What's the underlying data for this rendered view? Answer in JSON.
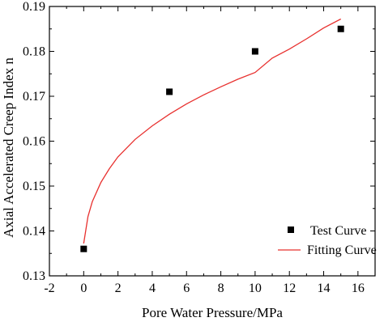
{
  "chart_data": {
    "type": "scatter",
    "xlabel": "Pore Water Pressure/MPa",
    "ylabel": "Axial Accelerated Creep Index n",
    "xlim": [
      -2,
      17
    ],
    "ylim": [
      0.13,
      0.19
    ],
    "x_ticks": [
      -2,
      0,
      2,
      4,
      6,
      8,
      10,
      12,
      14,
      16
    ],
    "y_ticks": [
      0.13,
      0.14,
      0.15,
      0.16,
      0.17,
      0.18,
      0.19
    ],
    "x_tick_labels": [
      "-2",
      "0",
      "2",
      "4",
      "6",
      "8",
      "10",
      "12",
      "14",
      "16"
    ],
    "y_tick_labels": [
      "0.13",
      "0.14",
      "0.15",
      "0.16",
      "0.17",
      "0.18",
      "0.19"
    ],
    "grid": false,
    "legend_position": "bottom-right",
    "series": [
      {
        "name": "Test Curve",
        "type": "scatter",
        "marker": "square",
        "color": "#000000",
        "x": [
          0,
          5,
          10,
          15
        ],
        "y": [
          0.136,
          0.171,
          0.18,
          0.185
        ]
      },
      {
        "name": "Fitting Curve",
        "type": "line",
        "color": "#e8312f",
        "x": [
          0,
          0.25,
          0.5,
          1,
          1.5,
          2,
          3,
          4,
          5,
          6,
          7,
          8,
          9,
          10,
          11,
          12,
          13,
          14,
          15
        ],
        "y": [
          0.1372,
          0.1432,
          0.1465,
          0.1508,
          0.1539,
          0.1565,
          0.1604,
          0.1634,
          0.166,
          0.1683,
          0.1703,
          0.1721,
          0.1738,
          0.1753,
          0.1785,
          0.1805,
          0.1828,
          0.1852,
          0.1872
        ]
      }
    ]
  }
}
